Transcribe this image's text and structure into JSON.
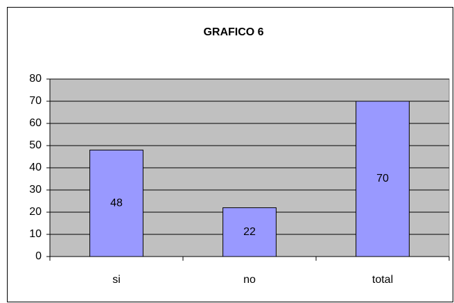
{
  "chart_data": {
    "type": "bar",
    "title": "GRAFICO 6",
    "categories": [
      "si",
      "no",
      "total"
    ],
    "values": [
      48,
      22,
      70
    ],
    "color": "#9999ff",
    "ylim": [
      0,
      80
    ],
    "yticks": [
      0,
      10,
      20,
      30,
      40,
      50,
      60,
      70,
      80
    ],
    "grid": true
  }
}
